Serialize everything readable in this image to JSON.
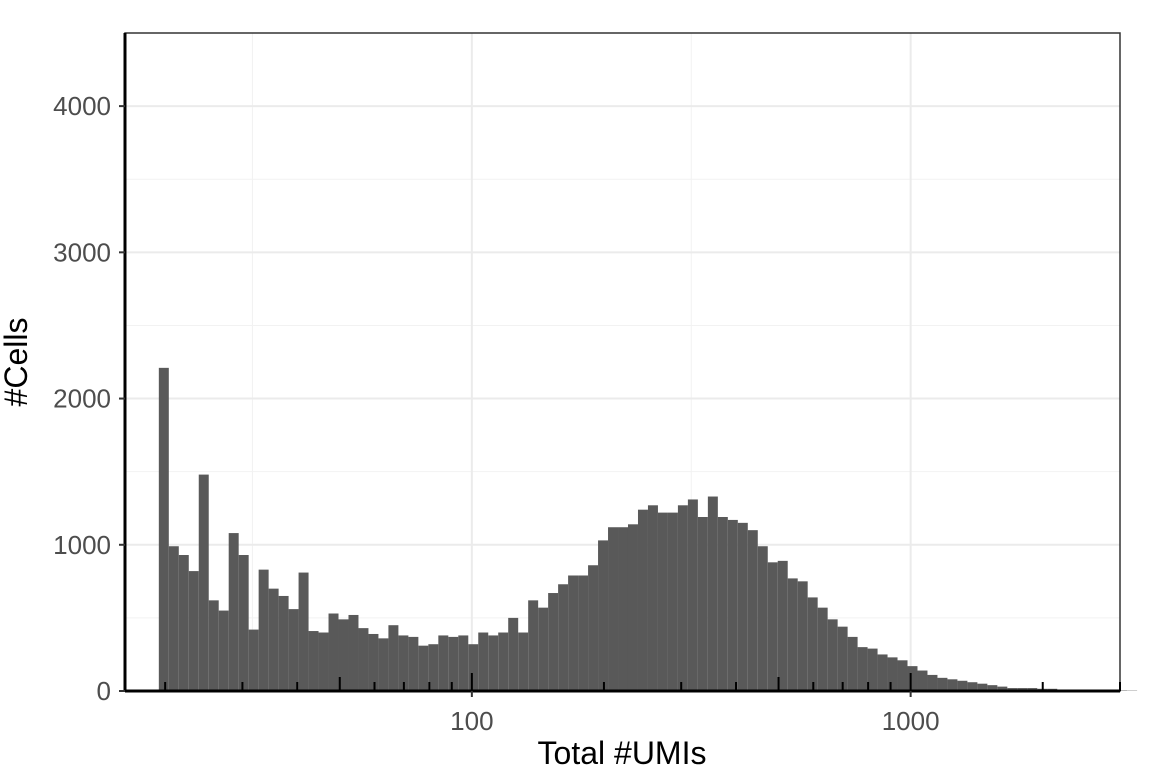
{
  "chart_data": {
    "type": "bar",
    "title": "",
    "xlabel": "Total #UMIs",
    "ylabel": "#Cells",
    "x_scale": "log10",
    "xlim": [
      16.2,
      3000
    ],
    "ylim": [
      0,
      4500
    ],
    "y_ticks": [
      0,
      1000,
      2000,
      3000,
      4000
    ],
    "y_tick_labels": [
      "0",
      "1000",
      "2000",
      "3000",
      "4000"
    ],
    "x_ticks": [
      100,
      1000
    ],
    "x_tick_labels": [
      "100",
      "1000"
    ],
    "grid": true,
    "bar_color": "#595959",
    "bins_log10_start": 1.2866,
    "bins_log10_width": 0.02275,
    "values": [
      2210,
      990,
      930,
      820,
      1480,
      620,
      550,
      1080,
      930,
      420,
      830,
      700,
      650,
      560,
      810,
      410,
      400,
      530,
      490,
      520,
      430,
      390,
      360,
      450,
      380,
      370,
      310,
      320,
      380,
      370,
      380,
      320,
      400,
      380,
      400,
      500,
      400,
      620,
      570,
      670,
      730,
      790,
      790,
      860,
      1030,
      1120,
      1120,
      1140,
      1240,
      1270,
      1220,
      1220,
      1270,
      1310,
      1190,
      1330,
      1190,
      1170,
      1150,
      1100,
      990,
      880,
      890,
      770,
      750,
      640,
      570,
      490,
      440,
      370,
      300,
      290,
      250,
      230,
      210,
      170,
      140,
      110,
      90,
      80,
      70,
      60,
      50,
      40,
      30,
      20,
      20,
      20,
      15,
      15,
      10,
      10,
      8,
      6,
      5,
      4,
      3,
      2
    ]
  }
}
